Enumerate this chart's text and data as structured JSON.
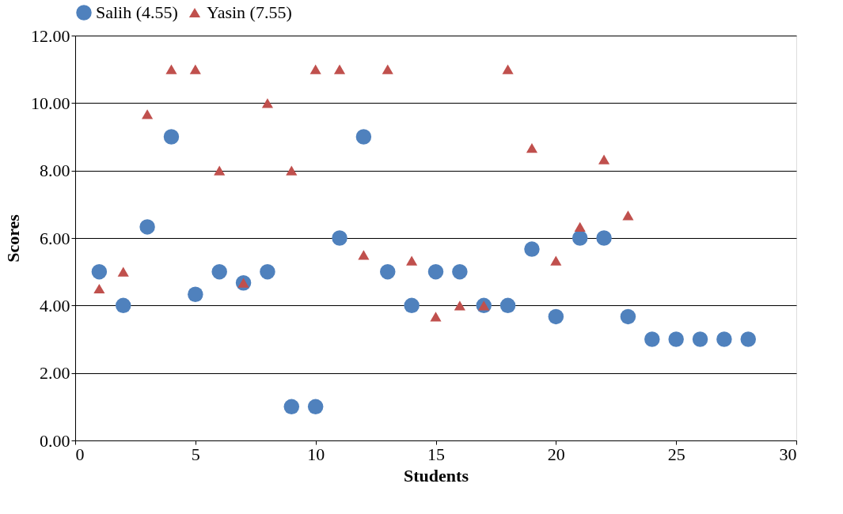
{
  "chart_data": {
    "type": "scatter",
    "xlabel": "Students",
    "ylabel": "Scores",
    "legend": "top",
    "grid": "y",
    "xlim": [
      0,
      30
    ],
    "xticks": [
      0,
      5,
      10,
      15,
      20,
      25,
      30
    ],
    "ylim": [
      0,
      12
    ],
    "yticks": [
      {
        "value": 0,
        "label": "0.00"
      },
      {
        "value": 2,
        "label": "2.00"
      },
      {
        "value": 4,
        "label": "4.00"
      },
      {
        "value": 6,
        "label": "6.00"
      },
      {
        "value": 8,
        "label": "8.00"
      },
      {
        "value": 10,
        "label": "10.00"
      },
      {
        "value": 12,
        "label": "12.00"
      }
    ],
    "series": [
      {
        "name": "Salih (4.55)",
        "color": "#4f81bd",
        "marker": "circle",
        "x": [
          1,
          2,
          3,
          4,
          5,
          6,
          7,
          8,
          9,
          10,
          11,
          12,
          13,
          14,
          15,
          16,
          17,
          18,
          19,
          20,
          21,
          22,
          23,
          24,
          25,
          26,
          27,
          28
        ],
        "values": [
          5.0,
          4.0,
          6.33,
          9.0,
          4.33,
          5.0,
          4.67,
          5.0,
          1.0,
          1.0,
          6.0,
          9.0,
          5.0,
          4.0,
          5.0,
          5.0,
          4.0,
          4.0,
          5.67,
          3.67,
          6.0,
          6.0,
          3.67,
          3.0,
          3.0,
          3.0,
          3.0,
          3.0
        ]
      },
      {
        "name": "Yasin (7.55)",
        "color": "#c0504d",
        "marker": "triangle",
        "x": [
          1,
          2,
          3,
          4,
          5,
          6,
          7,
          8,
          9,
          10,
          11,
          12,
          13,
          14,
          15,
          16,
          17,
          18,
          19,
          20,
          21,
          22,
          23
        ],
        "values": [
          4.5,
          5.0,
          9.67,
          11,
          11,
          8,
          4.67,
          10,
          8,
          11,
          11,
          5.5,
          11,
          5.33,
          3.67,
          4.0,
          4.0,
          11,
          8.67,
          5.33,
          6.33,
          8.33,
          6.67
        ]
      }
    ]
  }
}
